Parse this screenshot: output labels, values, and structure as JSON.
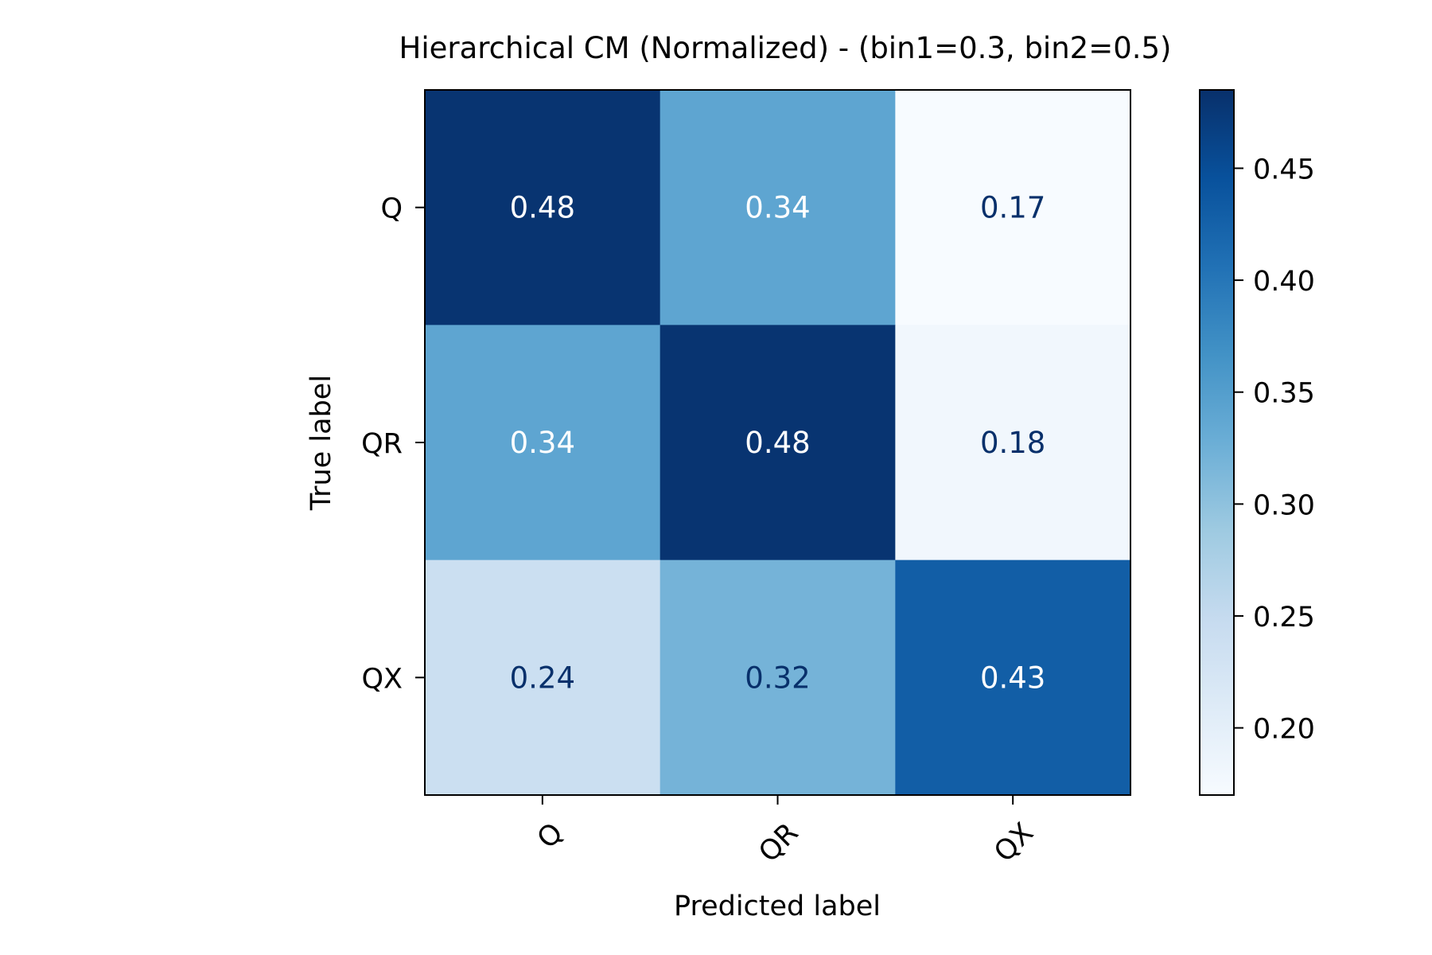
{
  "chart_data": {
    "type": "heatmap",
    "title": "Hierarchical CM (Normalized) - (bin1=0.3, bin2=0.5)",
    "xlabel": "Predicted label",
    "ylabel": "True label",
    "x_categories": [
      "Q",
      "QR",
      "QX"
    ],
    "y_categories": [
      "Q",
      "QR",
      "QX"
    ],
    "values": [
      [
        0.48,
        0.34,
        0.17
      ],
      [
        0.34,
        0.48,
        0.18
      ],
      [
        0.24,
        0.32,
        0.43
      ]
    ],
    "cell_labels": [
      [
        "0.48",
        "0.34",
        "0.17"
      ],
      [
        "0.34",
        "0.48",
        "0.18"
      ],
      [
        "0.24",
        "0.32",
        "0.43"
      ]
    ],
    "colorbar": {
      "range": [
        0.17,
        0.485
      ],
      "ticks": [
        0.2,
        0.25,
        0.3,
        0.35,
        0.4,
        0.45
      ],
      "tick_labels": [
        "0.20",
        "0.25",
        "0.30",
        "0.35",
        "0.40",
        "0.45"
      ]
    },
    "colormap": [
      "#f7fbff",
      "#deebf7",
      "#c6dbef",
      "#9ecae1",
      "#6baed6",
      "#4292c6",
      "#2171b5",
      "#08519c",
      "#08306b"
    ],
    "x_tick_rotation_deg": 45,
    "grid": false,
    "legend": "none"
  }
}
